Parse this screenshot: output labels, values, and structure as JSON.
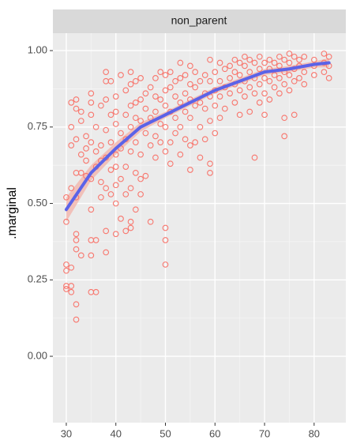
{
  "chart_data": {
    "type": "scatter",
    "panel_title": "non_parent",
    "ylabel": ".marginal",
    "xlim": [
      27.3,
      86.4
    ],
    "ylim": [
      -0.217,
      1.057
    ],
    "xticks": [
      30,
      40,
      50,
      60,
      70,
      80
    ],
    "yticks": [
      {
        "value": 0,
        "label": "0.00"
      },
      {
        "value": 0.25,
        "label": "0.25"
      },
      {
        "value": 0.5,
        "label": "0.50"
      },
      {
        "value": 0.75,
        "label": "0.75"
      },
      {
        "value": 1,
        "label": "1.00"
      }
    ],
    "grid": true,
    "point_color": "#F8766D",
    "x": [
      30,
      30,
      30,
      30,
      30,
      30,
      31,
      31,
      31,
      31,
      31,
      31,
      31,
      32,
      32,
      32,
      32,
      32,
      32,
      32,
      32,
      32,
      32,
      33,
      33,
      33,
      33,
      33,
      34,
      34,
      34,
      34,
      35,
      35,
      35,
      35,
      35,
      35,
      35,
      35,
      35,
      36,
      36,
      36,
      36,
      36,
      37,
      37,
      37,
      37,
      37,
      38,
      38,
      38,
      38,
      38,
      38,
      38,
      38,
      39,
      39,
      39,
      39,
      39,
      40,
      40,
      40,
      40,
      40,
      40,
      40,
      40,
      41,
      41,
      41,
      41,
      41,
      42,
      42,
      42,
      42,
      42,
      42,
      43,
      43,
      43,
      43,
      43,
      43,
      43,
      43,
      44,
      44,
      44,
      44,
      44,
      44,
      45,
      45,
      45,
      45,
      45,
      45,
      46,
      46,
      46,
      46,
      47,
      47,
      47,
      47,
      48,
      48,
      48,
      48,
      48,
      49,
      49,
      49,
      49,
      50,
      50,
      50,
      50,
      50,
      50,
      50,
      50,
      51,
      51,
      51,
      51,
      51,
      52,
      52,
      52,
      52,
      53,
      53,
      53,
      53,
      53,
      54,
      54,
      54,
      54,
      55,
      55,
      55,
      55,
      55,
      55,
      56,
      56,
      56,
      56,
      57,
      57,
      57,
      57,
      58,
      58,
      58,
      58,
      59,
      59,
      59,
      59,
      59,
      59,
      60,
      60,
      60,
      60,
      61,
      61,
      61,
      61,
      62,
      62,
      62,
      63,
      63,
      63,
      64,
      64,
      64,
      64,
      65,
      65,
      65,
      65,
      66,
      66,
      66,
      66,
      67,
      67,
      67,
      67,
      68,
      68,
      68,
      68,
      69,
      69,
      69,
      69,
      70,
      70,
      70,
      70,
      71,
      71,
      71,
      71,
      72,
      72,
      72,
      73,
      73,
      73,
      73,
      74,
      74,
      74,
      74,
      74,
      75,
      75,
      75,
      75,
      76,
      76,
      76,
      76,
      77,
      77,
      77,
      78,
      78,
      78,
      80,
      80,
      80,
      82,
      82,
      82,
      83,
      83,
      83
    ],
    "values": [
      0.22,
      0.23,
      0.28,
      0.3,
      0.44,
      0.52,
      0.21,
      0.23,
      0.29,
      0.55,
      0.69,
      0.75,
      0.83,
      0.12,
      0.17,
      0.35,
      0.38,
      0.4,
      0.52,
      0.6,
      0.71,
      0.81,
      0.84,
      0.33,
      0.6,
      0.66,
      0.77,
      0.8,
      0.59,
      0.64,
      0.68,
      0.72,
      0.21,
      0.33,
      0.38,
      0.48,
      0.58,
      0.7,
      0.79,
      0.83,
      0.86,
      0.21,
      0.38,
      0.62,
      0.67,
      0.75,
      0.52,
      0.57,
      0.64,
      0.69,
      0.82,
      0.34,
      0.41,
      0.55,
      0.65,
      0.74,
      0.84,
      0.9,
      0.93,
      0.53,
      0.61,
      0.7,
      0.79,
      0.9,
      0.4,
      0.5,
      0.56,
      0.62,
      0.66,
      0.76,
      0.8,
      0.85,
      0.45,
      0.58,
      0.68,
      0.73,
      0.92,
      0.41,
      0.53,
      0.62,
      0.71,
      0.79,
      0.87,
      0.42,
      0.44,
      0.55,
      0.67,
      0.75,
      0.82,
      0.89,
      0.93,
      0.48,
      0.6,
      0.7,
      0.78,
      0.83,
      0.9,
      0.53,
      0.58,
      0.66,
      0.77,
      0.84,
      0.91,
      0.59,
      0.73,
      0.81,
      0.86,
      0.44,
      0.69,
      0.78,
      0.88,
      0.65,
      0.72,
      0.8,
      0.85,
      0.91,
      0.7,
      0.76,
      0.84,
      0.93,
      0.3,
      0.38,
      0.42,
      0.67,
      0.75,
      0.82,
      0.87,
      0.92,
      0.63,
      0.7,
      0.8,
      0.88,
      0.93,
      0.73,
      0.78,
      0.85,
      0.9,
      0.66,
      0.75,
      0.83,
      0.91,
      0.96,
      0.71,
      0.8,
      0.86,
      0.92,
      0.61,
      0.69,
      0.78,
      0.84,
      0.89,
      0.95,
      0.7,
      0.82,
      0.88,
      0.93,
      0.65,
      0.75,
      0.83,
      0.9,
      0.71,
      0.81,
      0.86,
      0.92,
      0.6,
      0.63,
      0.77,
      0.85,
      0.9,
      0.97,
      0.73,
      0.82,
      0.87,
      0.93,
      0.78,
      0.85,
      0.9,
      0.96,
      0.81,
      0.88,
      0.94,
      0.86,
      0.91,
      0.95,
      0.83,
      0.89,
      0.93,
      0.97,
      0.79,
      0.87,
      0.92,
      0.96,
      0.85,
      0.9,
      0.95,
      0.98,
      0.8,
      0.88,
      0.93,
      0.97,
      0.65,
      0.86,
      0.91,
      0.96,
      0.83,
      0.89,
      0.94,
      0.98,
      0.79,
      0.86,
      0.91,
      0.96,
      0.84,
      0.9,
      0.94,
      0.97,
      0.88,
      0.92,
      0.96,
      0.86,
      0.91,
      0.95,
      0.98,
      0.72,
      0.78,
      0.89,
      0.93,
      0.97,
      0.87,
      0.92,
      0.96,
      0.99,
      0.79,
      0.9,
      0.94,
      0.98,
      0.91,
      0.95,
      0.97,
      0.89,
      0.93,
      0.98,
      0.92,
      0.95,
      0.97,
      0.93,
      0.96,
      0.99,
      0.91,
      0.95,
      0.98
    ],
    "smooth": {
      "color": "#5B63E8",
      "fill": "#F2B8B0",
      "x": [
        30,
        35,
        40,
        45,
        50,
        55,
        60,
        65,
        70,
        75,
        80,
        83
      ],
      "values": [
        0.48,
        0.6,
        0.68,
        0.75,
        0.79,
        0.83,
        0.87,
        0.9,
        0.93,
        0.94,
        0.955,
        0.96
      ],
      "lower": [
        0.44,
        0.575,
        0.66,
        0.735,
        0.78,
        0.82,
        0.86,
        0.89,
        0.92,
        0.93,
        0.945,
        0.945
      ],
      "upper": [
        0.52,
        0.625,
        0.7,
        0.765,
        0.8,
        0.84,
        0.88,
        0.91,
        0.94,
        0.95,
        0.965,
        0.975
      ]
    }
  }
}
